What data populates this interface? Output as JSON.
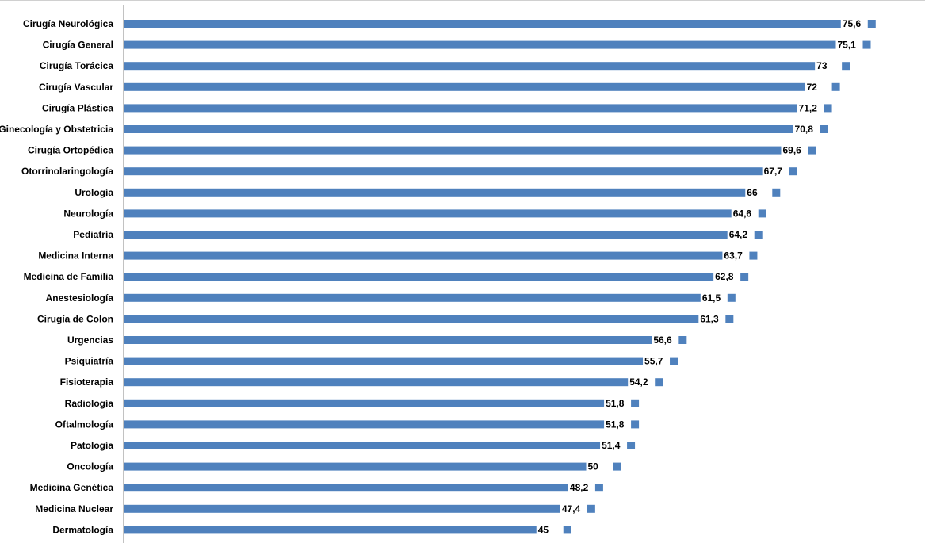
{
  "chart_data": {
    "type": "bar",
    "orientation": "horizontal",
    "title": "",
    "xlabel": "",
    "ylabel": "",
    "categories": [
      "Cirugía Neurológica",
      "Cirugía General",
      "Cirugía Torácica",
      "Cirugía Vascular",
      "Cirugía Plástica",
      "Ginecología y Obstetricia",
      "Cirugía Ortopédica",
      "Otorrinolaringología",
      "Urología",
      "Neurología",
      "Pediatría",
      "Medicina Interna",
      "Medicina de Familia",
      "Anestesiología",
      "Cirugía de Colon",
      "Urgencias",
      "Psiquiatría",
      "Fisioterapia",
      "Radiología",
      "Oftalmología",
      "Patología",
      "Oncología",
      "Medicina Genética",
      "Medicina Nuclear",
      "Dermatología"
    ],
    "values": [
      75.6,
      75.1,
      73,
      72,
      71.2,
      70.8,
      69.6,
      67.7,
      66,
      64.6,
      64.2,
      63.7,
      62.8,
      61.5,
      61.3,
      56.6,
      55.7,
      54.2,
      51.8,
      51.8,
      51.4,
      50,
      48.2,
      47.4,
      45
    ],
    "value_labels": [
      "75,6",
      "75,1",
      "73",
      "72",
      "71,2",
      "70,8",
      "69,6",
      "67,7",
      "66",
      "64,6",
      "64,2",
      "63,7",
      "62,8",
      "61,5",
      "61,3",
      "56,6",
      "55,7",
      "54,2",
      "51,8",
      "51,8",
      "51,4",
      "50",
      "48,2",
      "47,4",
      "45"
    ],
    "xlim": [
      0,
      80
    ],
    "grid": false,
    "legend": "none",
    "bar_color": "#4F81BD",
    "axis_color": "#868686"
  }
}
